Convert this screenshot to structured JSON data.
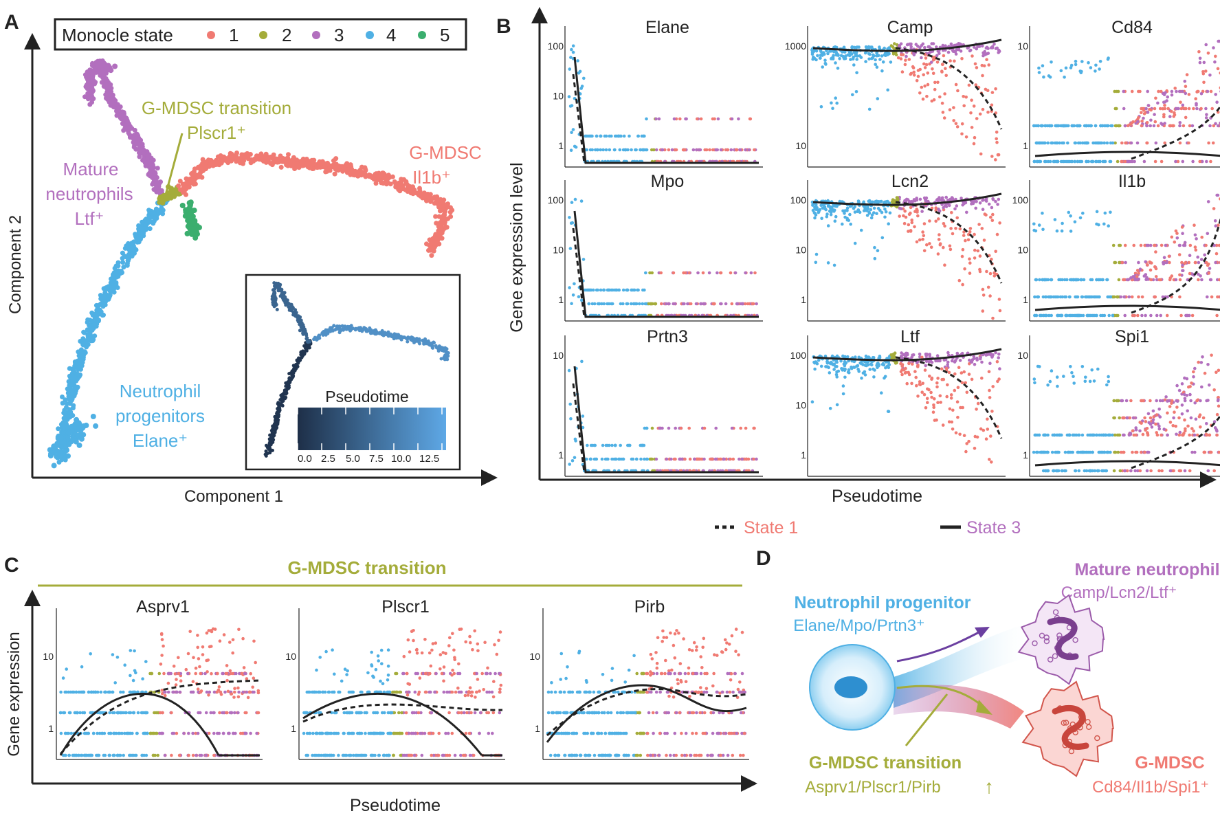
{
  "colors": {
    "state1": "#F07A72",
    "state2": "#A4AC3A",
    "state3": "#B26FBE",
    "state4": "#4FB0E4",
    "state5": "#3BAE6E",
    "axis": "#222222"
  },
  "panel_a": {
    "letter": "A",
    "legend_title": "Monocle state",
    "states": [
      {
        "label": "1",
        "color": "#F07A72"
      },
      {
        "label": "2",
        "color": "#A4AC3A"
      },
      {
        "label": "3",
        "color": "#B26FBE"
      },
      {
        "label": "4",
        "color": "#4FB0E4"
      },
      {
        "label": "5",
        "color": "#3BAE6E"
      }
    ],
    "xlabel": "Component 1",
    "ylabel": "Component 2",
    "annotations": {
      "gmdsc_transition_1": "G-MDSC transition",
      "gmdsc_transition_2": "Plscr1⁺",
      "mature_1": "Mature",
      "mature_2": "neutrophils",
      "mature_3": "Ltf⁺",
      "gmdsc_1": "G-MDSC",
      "gmdsc_2": "Il1b⁺",
      "prog_1": "Neutrophil",
      "prog_2": "progenitors",
      "prog_3": "Elane⁺"
    },
    "inset": {
      "title": "Pseudotime",
      "ticks": [
        "0.0",
        "2.5",
        "5.0",
        "7.5",
        "10.0",
        "12.5"
      ],
      "dark": "#1E2F48",
      "light": "#5EA8E6"
    }
  },
  "panel_b": {
    "letter": "B",
    "ylabel": "Gene expression level",
    "xlabel": "Pseudotime",
    "genes": [
      "Elane",
      "Camp",
      "Cd84",
      "Mpo",
      "Lcn2",
      "Il1b",
      "Prtn3",
      "Ltf",
      "Spi1"
    ],
    "legend": {
      "state1": "State 1",
      "state3": "State 3"
    }
  },
  "panel_c": {
    "letter": "C",
    "title": "G-MDSC transition",
    "ylabel": "Gene expression",
    "xlabel": "Pseudotime",
    "genes": [
      "Asprv1",
      "Plscr1",
      "Pirb"
    ]
  },
  "panel_d": {
    "letter": "D",
    "progenitor_title": "Neutrophil progenitor",
    "progenitor_genes": "Elane/Mpo/Prtn3⁺",
    "mature_title": "Mature neutrophil",
    "mature_genes": "Camp/Lcn2/Ltf⁺",
    "transition_title": "G-MDSC transition",
    "transition_genes": "Asprv1/Plscr1/Pirb",
    "transition_arrow": "↑",
    "gmdsc_title": "G-MDSC",
    "gmdsc_genes": "Cd84/Il1b/Spi1⁺"
  }
}
